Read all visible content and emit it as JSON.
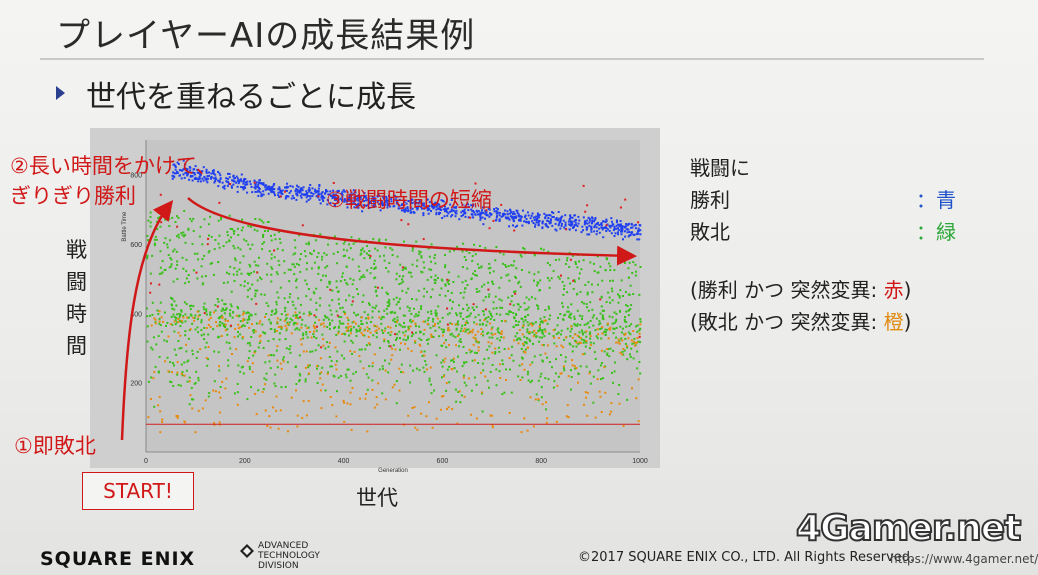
{
  "slide": {
    "title": "プレイヤーAIの成長結果例",
    "bullet": "世代を重ねるごとに成長"
  },
  "annotations": {
    "long_time": "②長い時間をかけて、",
    "narrow_win": "ぎりぎり勝利",
    "shorten": "③戦闘時間の短縮",
    "instant_loss": "①即敗北",
    "start": "START!",
    "y_label": "戦闘時間",
    "x_label": "世代"
  },
  "legend": {
    "heading": "戦闘に",
    "win_label": "勝利",
    "win_value": "：青",
    "loss_label": "敗北",
    "loss_value": "：緑",
    "win_mut": "(勝利 かつ 突然変異: ",
    "win_mut_value": "赤",
    "loss_mut": "(敗北 かつ 突然変異: ",
    "loss_mut_value": "橙",
    "close": ")"
  },
  "colors": {
    "win": "#1f3ff0",
    "loss": "#39c01a",
    "win_mutation": "#e02020",
    "loss_mutation": "#e88a10",
    "annotation": "#d01818"
  },
  "chart_data": {
    "type": "scatter",
    "xlabel": "Generation",
    "ylabel": "Battle Time",
    "xlim": [
      0,
      1000
    ],
    "ylim": [
      0,
      900
    ],
    "x_ticks": [
      0,
      200,
      400,
      600,
      800,
      1000
    ],
    "y_ticks": [
      200,
      400,
      600,
      800
    ],
    "reference_line_y": 80,
    "series": [
      {
        "name": "勝利",
        "color": "#1f3ff0"
      },
      {
        "name": "敗北",
        "color": "#39c01a"
      },
      {
        "name": "勝利 かつ 突然変異",
        "color": "#e02020"
      },
      {
        "name": "敗北 かつ 突然変異",
        "color": "#e88a10"
      }
    ]
  },
  "footer": {
    "company": "SQUARE ENIX",
    "division_line1": "ADVANCED",
    "division_line2": "TECHNOLOGY",
    "division_line3": "DIVISION",
    "copyright": "©2017 SQUARE ENIX CO., LTD.  All Rights Reserved.",
    "watermark": "4Gamer.net",
    "watermark_url": "https://www.4gamer.net/"
  }
}
